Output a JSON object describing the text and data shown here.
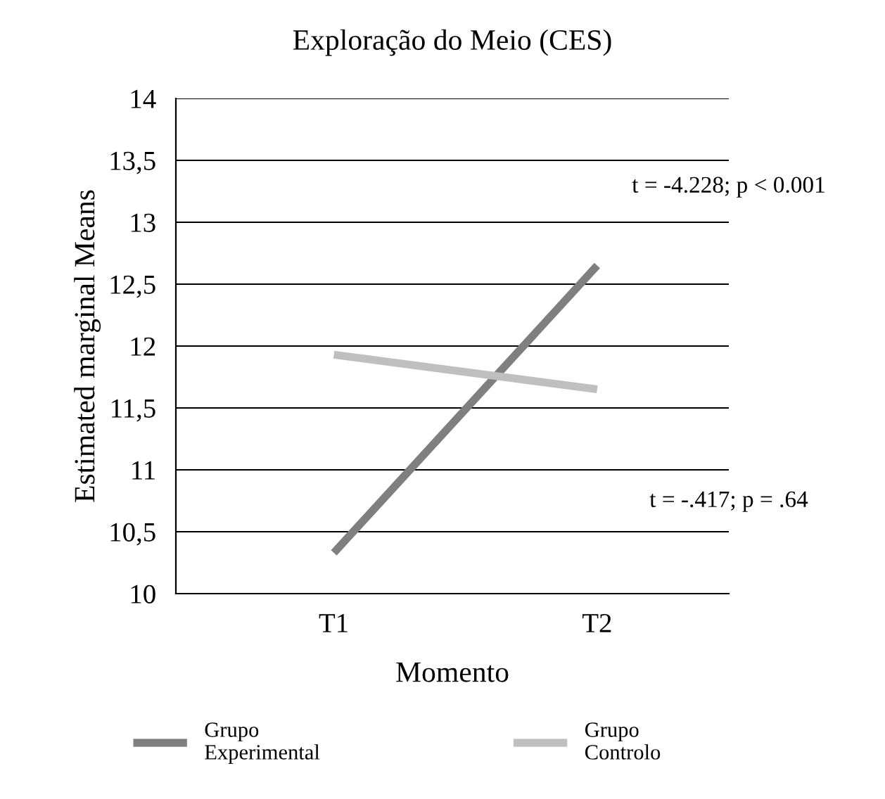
{
  "chart_data": {
    "type": "line",
    "title": "Exploração do Meio (CES)",
    "xlabel": "Momento",
    "ylabel": "Estimated marginal Means",
    "categories": [
      "T1",
      "T2"
    ],
    "series": [
      {
        "name": "Grupo\nExperimental",
        "color": "#7f7f7f",
        "values": [
          10.33,
          12.65
        ]
      },
      {
        "name": "Grupo\nControlo",
        "color": "#bfbfbf",
        "values": [
          11.93,
          11.65
        ]
      }
    ],
    "ylim": [
      10,
      14
    ],
    "yticks": [
      10,
      {
        "value": 10.5,
        "label": "10,5"
      },
      11,
      {
        "value": 11.5,
        "label": "11,5"
      },
      12,
      {
        "value": 12.5,
        "label": "12,5"
      },
      13,
      {
        "value": 13.5,
        "label": "13,5"
      },
      14
    ],
    "grid": "y",
    "legend": "bottom",
    "marker": "none",
    "line_style": "solid",
    "annotations": [
      "t = -4.228; p < 0.001",
      "t = -.417; p = .64"
    ]
  }
}
